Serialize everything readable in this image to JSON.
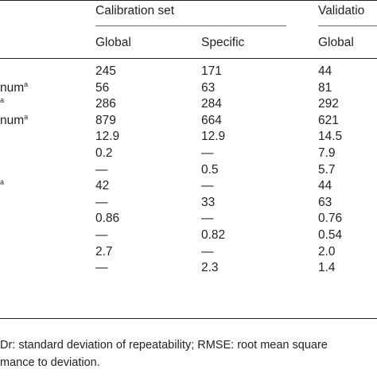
{
  "headers": {
    "group_calibration": "Calibration set",
    "group_validation": "Validatio",
    "col_global": "Global",
    "col_specific": "Specific",
    "col_validation_global": "Global"
  },
  "row_labels": [
    {
      "text": "",
      "sup": ""
    },
    {
      "text": "num",
      "sup": "a"
    },
    {
      "text": "",
      "sup": "a"
    },
    {
      "text": "num",
      "sup": "a"
    },
    {
      "text": "",
      "sup": ""
    },
    {
      "text": "",
      "sup": ""
    },
    {
      "text": "",
      "sup": ""
    },
    {
      "text": "",
      "sup": "a"
    },
    {
      "text": "",
      "sup": ""
    },
    {
      "text": "",
      "sup": ""
    },
    {
      "text": "",
      "sup": ""
    },
    {
      "text": "",
      "sup": ""
    },
    {
      "text": "",
      "sup": ""
    }
  ],
  "rows": [
    [
      "245",
      "171",
      "44"
    ],
    [
      "56",
      "63",
      "81"
    ],
    [
      "286",
      "284",
      "292"
    ],
    [
      "879",
      "664",
      "621"
    ],
    [
      "12.9",
      "12.9",
      "14.5"
    ],
    [
      "0.2",
      "—",
      "7.9"
    ],
    [
      "—",
      "0.5",
      "5.7"
    ],
    [
      "42",
      "—",
      "44"
    ],
    [
      "—",
      "33",
      "63"
    ],
    [
      "0.86",
      "—",
      "0.76"
    ],
    [
      "—",
      "0.82",
      "0.54"
    ],
    [
      "2.7",
      "—",
      "2.0"
    ],
    [
      "—",
      "2.3",
      "1.4"
    ]
  ],
  "footnote": {
    "line1": "Dr: standard deviation of repeatability; RMSE: root mean square",
    "line2": "mance to deviation."
  }
}
